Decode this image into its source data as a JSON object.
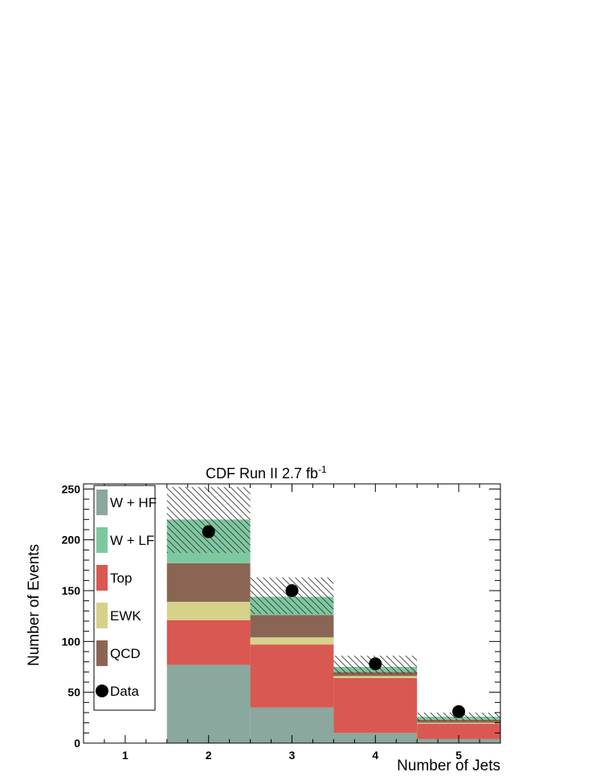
{
  "chart_data": {
    "type": "bar",
    "stacked": true,
    "title": "CDF Run II 2.7 fb",
    "title_superscript": "-1",
    "xlabel": "Number of Jets",
    "ylabel": "Number of Events",
    "categories": [
      "1",
      "2",
      "3",
      "4",
      "5"
    ],
    "ylim": [
      0,
      255
    ],
    "yticks": [
      0,
      50,
      100,
      150,
      200,
      250
    ],
    "grid": false,
    "legend_position": "top-left",
    "series": [
      {
        "name": "W + HF",
        "color": "#8aa89e",
        "values": [
          0,
          77,
          35,
          10,
          4
        ]
      },
      {
        "name": "W + LF",
        "color": "#7ec8a0",
        "values": [
          0,
          43,
          18,
          5,
          3
        ]
      },
      {
        "name": "Top",
        "color": "#d95852",
        "values": [
          0,
          44,
          62,
          54,
          15
        ]
      },
      {
        "name": "EWK",
        "color": "#d6d28a",
        "values": [
          0,
          18,
          7,
          2,
          1
        ]
      },
      {
        "name": "QCD",
        "color": "#8b6554",
        "values": [
          0,
          38,
          22,
          4,
          3
        ]
      }
    ],
    "stack_order": [
      "W + HF",
      "Top",
      "EWK",
      "QCD",
      "W + LF"
    ],
    "uncertainty_band": {
      "low": [
        0,
        187,
        127,
        68,
        22
      ],
      "high": [
        0,
        252,
        163,
        86,
        30
      ]
    },
    "data": {
      "name": "Data",
      "values": [
        null,
        208,
        150,
        78,
        31
      ]
    }
  }
}
